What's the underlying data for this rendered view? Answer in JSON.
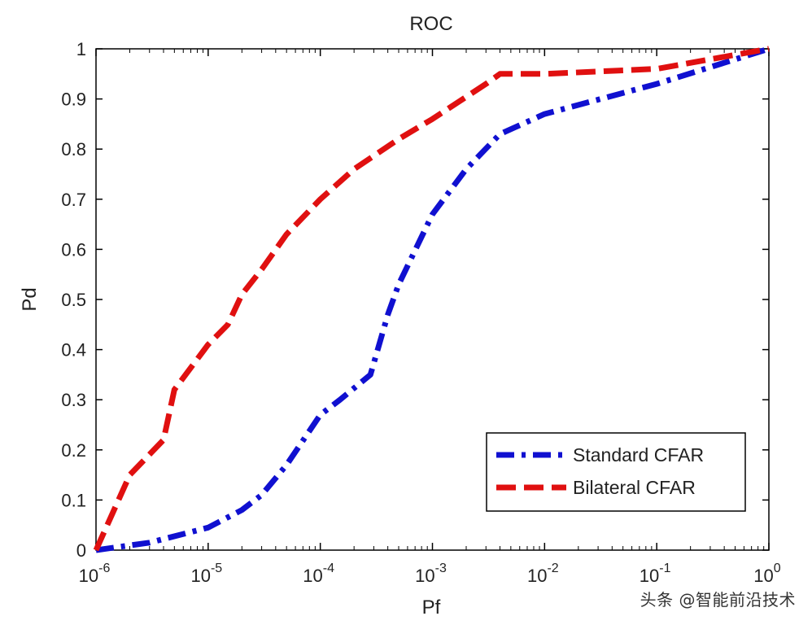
{
  "chart_data": {
    "type": "line",
    "title": "ROC",
    "xlabel": "Pf",
    "ylabel": "Pd",
    "xscale": "log",
    "xlim": [
      -6,
      0
    ],
    "ylim": [
      0,
      1
    ],
    "x_ticks": [
      {
        "base": "10",
        "exp": "-6"
      },
      {
        "base": "10",
        "exp": "-5"
      },
      {
        "base": "10",
        "exp": "-4"
      },
      {
        "base": "10",
        "exp": "-3"
      },
      {
        "base": "10",
        "exp": "-2"
      },
      {
        "base": "10",
        "exp": "-1"
      },
      {
        "base": "10",
        "exp": "0"
      }
    ],
    "y_ticks": [
      "0",
      "0.1",
      "0.2",
      "0.3",
      "0.4",
      "0.5",
      "0.6",
      "0.7",
      "0.8",
      "0.9",
      "1"
    ],
    "grid": false,
    "legend_position": "bottom-right",
    "series": [
      {
        "name": "Standard CFAR",
        "color": "#1010d0",
        "style": "dash-dot",
        "x": [
          1e-06,
          3e-06,
          1e-05,
          2e-05,
          3e-05,
          5e-05,
          0.0001,
          0.00015,
          0.00028,
          0.0004,
          0.0005,
          0.001,
          0.002,
          0.004,
          0.01,
          0.1,
          1
        ],
        "y": [
          0.0,
          0.015,
          0.045,
          0.08,
          0.11,
          0.17,
          0.27,
          0.3,
          0.35,
          0.47,
          0.53,
          0.67,
          0.76,
          0.83,
          0.87,
          0.93,
          1.0
        ]
      },
      {
        "name": "Bilateral CFAR",
        "color": "#e01010",
        "style": "dashed",
        "x": [
          1e-06,
          2e-06,
          4e-06,
          5e-06,
          1e-05,
          1.5e-05,
          2e-05,
          3e-05,
          5e-05,
          0.0001,
          0.0002,
          0.0005,
          0.001,
          0.003,
          0.004,
          0.01,
          0.1,
          1
        ],
        "y": [
          0.0,
          0.15,
          0.22,
          0.32,
          0.41,
          0.45,
          0.51,
          0.56,
          0.63,
          0.7,
          0.76,
          0.82,
          0.86,
          0.93,
          0.95,
          0.95,
          0.96,
          1.0
        ]
      }
    ]
  },
  "watermark": "头条 @智能前沿技术"
}
